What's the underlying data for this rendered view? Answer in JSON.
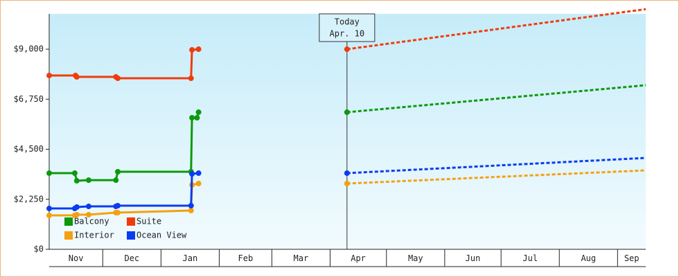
{
  "chart_data": {
    "type": "line",
    "xlim": [
      1.5,
      319
    ],
    "ylim": [
      0,
      10590
    ],
    "xticks": [
      {
        "value": 0,
        "label": "Nov"
      },
      {
        "value": 30,
        "label": "Dec"
      },
      {
        "value": 61,
        "label": "Jan"
      },
      {
        "value": 92,
        "label": "Feb"
      },
      {
        "value": 120,
        "label": "Mar"
      },
      {
        "value": 151,
        "label": "Apr"
      },
      {
        "value": 181,
        "label": "May"
      },
      {
        "value": 212,
        "label": "Jun"
      },
      {
        "value": 242,
        "label": "Jul"
      },
      {
        "value": 273,
        "label": "Aug"
      },
      {
        "value": 304,
        "label": "Sep"
      }
    ],
    "yticks": [
      {
        "value": 0,
        "label": "$0"
      },
      {
        "value": 2250,
        "label": "$2,250"
      },
      {
        "value": 4500,
        "label": "$4,500"
      },
      {
        "value": 6750,
        "label": "$6,750"
      },
      {
        "value": 9000,
        "label": "$9,000"
      }
    ],
    "annotation": {
      "x": 160,
      "lines": [
        "Today",
        "Apr. 10"
      ]
    },
    "legend": "bottom-left",
    "series": [
      {
        "name": "Balcony",
        "color": "#0a9a0a",
        "x": [
          1.5,
          15.1,
          16.2,
          22.5,
          37,
          38,
          77,
          77.5,
          80.2,
          81
        ],
        "values": [
          3425,
          3425,
          3083,
          3110,
          3110,
          3488,
          3488,
          5917,
          5917,
          6166
        ],
        "forecast": {
          "x": [
            160,
            319
          ],
          "values": [
            6166,
            7380
          ]
        }
      },
      {
        "name": "Suite",
        "color": "#f03c0a",
        "x": [
          1.5,
          15.5,
          16.2,
          37,
          38,
          77,
          77.5,
          81
        ],
        "values": [
          7816,
          7816,
          7754,
          7754,
          7692,
          7692,
          8969,
          9000
        ],
        "forecast": {
          "x": [
            160,
            319
          ],
          "values": [
            9000,
            10800
          ]
        }
      },
      {
        "name": "Interior",
        "color": "#f5a00f",
        "x": [
          1.5,
          15.1,
          16.2,
          22.5,
          37,
          38,
          77,
          77.5,
          81
        ],
        "values": [
          1526,
          1526,
          1557,
          1557,
          1650,
          1650,
          1744,
          2896,
          2958
        ],
        "forecast": {
          "x": [
            160,
            319
          ],
          "values": [
            2958,
            3550
          ]
        }
      },
      {
        "name": "Ocean View",
        "color": "#0a3cf0",
        "x": [
          1.5,
          15.1,
          16.2,
          22.5,
          37,
          38,
          77,
          77.5,
          81
        ],
        "values": [
          1837,
          1837,
          1900,
          1930,
          1930,
          1962,
          1962,
          3394,
          3425
        ],
        "forecast": {
          "x": [
            160,
            319
          ],
          "values": [
            3425,
            4110
          ]
        }
      }
    ]
  }
}
